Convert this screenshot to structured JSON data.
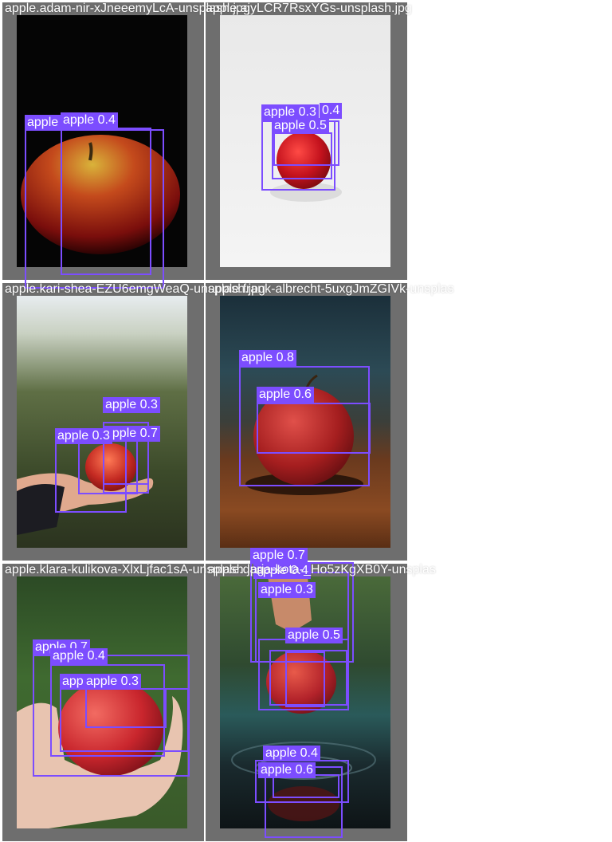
{
  "grid": {
    "cells": [
      {
        "filename": "apple.adam-nir-xJneeemyLcA-unsplash.jpg",
        "scene": "dark studio apple"
      },
      {
        "filename": "apple.ajyLCR7RsxYGs-unsplash.jpg",
        "scene": "white background apple"
      },
      {
        "filename": "apple.kari-shea-EZU6emgWeaQ-unsplash.jpg",
        "scene": "hand holding apple in orchard"
      },
      {
        "filename": "apple.frank-albrecht-5uxgJmZGIVk-unsplas",
        "scene": "apple on wooden table"
      },
      {
        "filename": "apple.klara-kulikova-XlxLjfac1sA-unsplash.jpg",
        "scene": "hand holding apple, green background"
      },
      {
        "filename": "apple.daria-kota-_Ho5zKgXB0Y-unsplas",
        "scene": "apple dropping into water"
      }
    ]
  },
  "detections": [
    [
      {
        "label": "apple",
        "score": "0.4"
      },
      {
        "label": "apple",
        "score": ""
      }
    ],
    [
      {
        "label": "apple",
        "score": "0.3"
      },
      {
        "label": "apple",
        "score": "0.4"
      },
      {
        "label": "apple",
        "score": "0.5"
      }
    ],
    [
      {
        "label": "apple",
        "score": "0.3"
      },
      {
        "label": "apple",
        "score": "0.3"
      },
      {
        "label": "apple",
        "score": "0.7"
      }
    ],
    [
      {
        "label": "apple",
        "score": "0.8"
      },
      {
        "label": "apple",
        "score": "0.6"
      }
    ],
    [
      {
        "label": "apple",
        "score": "0.7"
      },
      {
        "label": "apple",
        "score": "0.4"
      },
      {
        "label": "apple",
        "score": "0.3"
      },
      {
        "label": "appe",
        "score": ""
      }
    ],
    [
      {
        "label": "apple",
        "score": "0.7"
      },
      {
        "label": "apple",
        "score": "0.4"
      },
      {
        "label": "apple",
        "score": "0.3"
      },
      {
        "label": "apple",
        "score": "0.5"
      },
      {
        "label": "apple",
        "score": "0.4"
      },
      {
        "label": "apple",
        "score": "0.6"
      }
    ]
  ],
  "colors": {
    "box": "#7c4dff",
    "cell_background": "#6e6e6e"
  }
}
